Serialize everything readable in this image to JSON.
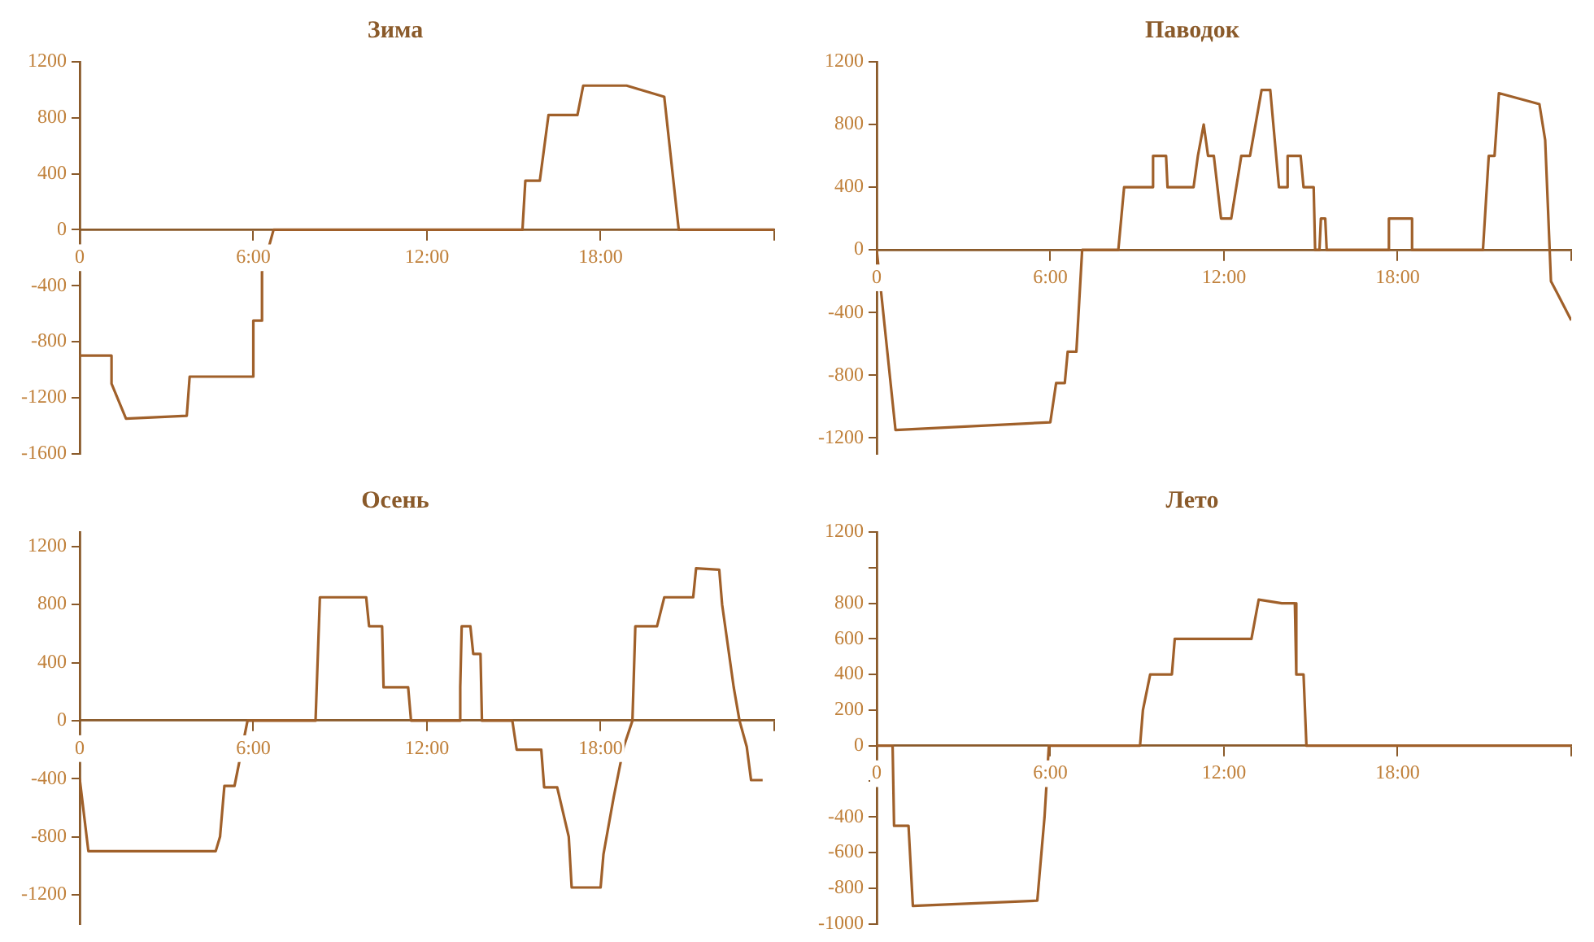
{
  "chart_data": [
    {
      "type": "line",
      "title": "Зима",
      "color": "#a0602a",
      "grid": false,
      "legend": false,
      "marker": "none",
      "line_style": "solid",
      "xlim": [
        0,
        24
      ],
      "ylim": [
        -1600,
        1200
      ],
      "xticks": [
        {
          "value": 0,
          "label": "0"
        },
        {
          "value": 6,
          "label": "6:00"
        },
        {
          "value": 12,
          "label": "12:00"
        },
        {
          "value": 18,
          "label": "18:00"
        },
        {
          "value": 24,
          "label": null
        }
      ],
      "yticks": [
        -1600,
        -1200,
        -800,
        -400,
        0,
        400,
        800,
        1200
      ],
      "x": [
        0,
        1.1,
        1.1,
        1.6,
        3.7,
        3.8,
        6,
        6,
        6.3,
        6.3,
        6.7,
        15.3,
        15.4,
        15.9,
        16.2,
        17.2,
        17.4,
        18.9,
        20.2,
        20.7,
        24
      ],
      "values": [
        -900,
        -900,
        -1100,
        -1350,
        -1330,
        -1050,
        -1050,
        -650,
        -650,
        -300,
        0,
        0,
        350,
        350,
        820,
        820,
        1030,
        1030,
        950,
        0,
        0
      ]
    },
    {
      "type": "line",
      "title": "Паводок",
      "color": "#a0602a",
      "grid": false,
      "legend": false,
      "marker": "none",
      "line_style": "solid",
      "xlim": [
        0,
        24
      ],
      "ylim": [
        -1300,
        1200
      ],
      "xticks": [
        {
          "value": 0,
          "label": "0"
        },
        {
          "value": 6,
          "label": "6:00"
        },
        {
          "value": 12,
          "label": "12:00"
        },
        {
          "value": 18,
          "label": "18:00"
        },
        {
          "value": 24,
          "label": null
        }
      ],
      "yticks": [
        -1200,
        -800,
        -400,
        0,
        400,
        800,
        1200
      ],
      "x": [
        0,
        0.65,
        6,
        6.2,
        6.5,
        6.6,
        6.9,
        7.1,
        8.35,
        8.55,
        9.55,
        9.55,
        10,
        10.05,
        10.95,
        11.1,
        11.3,
        11.45,
        11.65,
        11.9,
        12.25,
        12.6,
        12.9,
        13.3,
        13.6,
        13.9,
        14.2,
        14.2,
        14.65,
        14.75,
        15.1,
        15.15,
        15.3,
        15.35,
        15.5,
        15.55,
        17.7,
        17.7,
        18.5,
        18.5,
        20.95,
        21.15,
        21.35,
        21.5,
        22.9,
        23.1,
        23.3,
        23.5,
        24
      ],
      "values": [
        0,
        -1150,
        -1100,
        -850,
        -850,
        -650,
        -650,
        0,
        0,
        400,
        400,
        600,
        600,
        400,
        400,
        600,
        800,
        600,
        600,
        200,
        200,
        600,
        600,
        1020,
        1020,
        400,
        400,
        600,
        600,
        400,
        400,
        0,
        0,
        200,
        200,
        0,
        0,
        200,
        200,
        0,
        0,
        600,
        600,
        1000,
        930,
        700,
        -200,
        -270,
        -450
      ]
    },
    {
      "type": "line",
      "title": "Осень",
      "color": "#a0602a",
      "grid": false,
      "legend": false,
      "marker": "none",
      "line_style": "solid",
      "xlim": [
        0,
        24
      ],
      "ylim": [
        -1400,
        1300
      ],
      "xticks": [
        {
          "value": 0,
          "label": "0"
        },
        {
          "value": 6,
          "label": "6:00"
        },
        {
          "value": 12,
          "label": "12:00"
        },
        {
          "value": 18,
          "label": "18:00"
        },
        {
          "value": 24,
          "label": null
        }
      ],
      "yticks": [
        -1200,
        -800,
        -400,
        0,
        400,
        800,
        1200
      ],
      "x": [
        0,
        0.3,
        4.7,
        4.85,
        5,
        5.35,
        5.8,
        8.15,
        8.3,
        9.9,
        10,
        10.45,
        10.5,
        11.35,
        11.45,
        13.1,
        13.15,
        13.2,
        13.5,
        13.6,
        13.85,
        13.9,
        14.95,
        15.1,
        15.95,
        16.05,
        16.5,
        16.9,
        17,
        18,
        18.1,
        18.45,
        18.8,
        19.1,
        19.2,
        19.95,
        20.2,
        21.2,
        21.3,
        22.1,
        22.2,
        22.6,
        22.8,
        23.05,
        23.2,
        23.6
      ],
      "values": [
        -400,
        -900,
        -900,
        -800,
        -450,
        -450,
        0,
        0,
        850,
        850,
        650,
        650,
        230,
        230,
        0,
        0,
        230,
        650,
        650,
        460,
        460,
        0,
        0,
        -200,
        -200,
        -460,
        -460,
        -800,
        -1150,
        -1150,
        -920,
        -530,
        -180,
        0,
        650,
        650,
        850,
        850,
        1050,
        1040,
        800,
        230,
        0,
        -180,
        -410,
        -410
      ]
    },
    {
      "type": "line",
      "title": "Лето",
      "color": "#a0602a",
      "grid": false,
      "legend": false,
      "marker": "none",
      "line_style": "solid",
      "xlim": [
        0,
        24
      ],
      "ylim": [
        -1000,
        1200
      ],
      "xticks": [
        {
          "value": 0,
          "label": "0"
        },
        {
          "value": 6,
          "label": "6:00"
        },
        {
          "value": 12,
          "label": "12:00"
        },
        {
          "value": 18,
          "label": "18:00"
        },
        {
          "value": 24,
          "label": null
        }
      ],
      "yticks": [
        -1000,
        -800,
        -600,
        -400,
        {
          "value": -200,
          "label": null
        },
        0,
        200,
        400,
        600,
        800,
        {
          "value": 1000,
          "label": null
        },
        1200
      ],
      "x": [
        0,
        0.55,
        0.6,
        1.1,
        1.25,
        5.55,
        5.8,
        5.95,
        9.1,
        9.2,
        9.45,
        10.2,
        10.3,
        12.95,
        13.2,
        14,
        14.45,
        14.5,
        14.75,
        14.85,
        24
      ],
      "values": [
        0,
        0,
        -450,
        -450,
        -900,
        -870,
        -400,
        0,
        0,
        200,
        400,
        400,
        600,
        600,
        820,
        800,
        800,
        400,
        400,
        0,
        0
      ]
    }
  ]
}
